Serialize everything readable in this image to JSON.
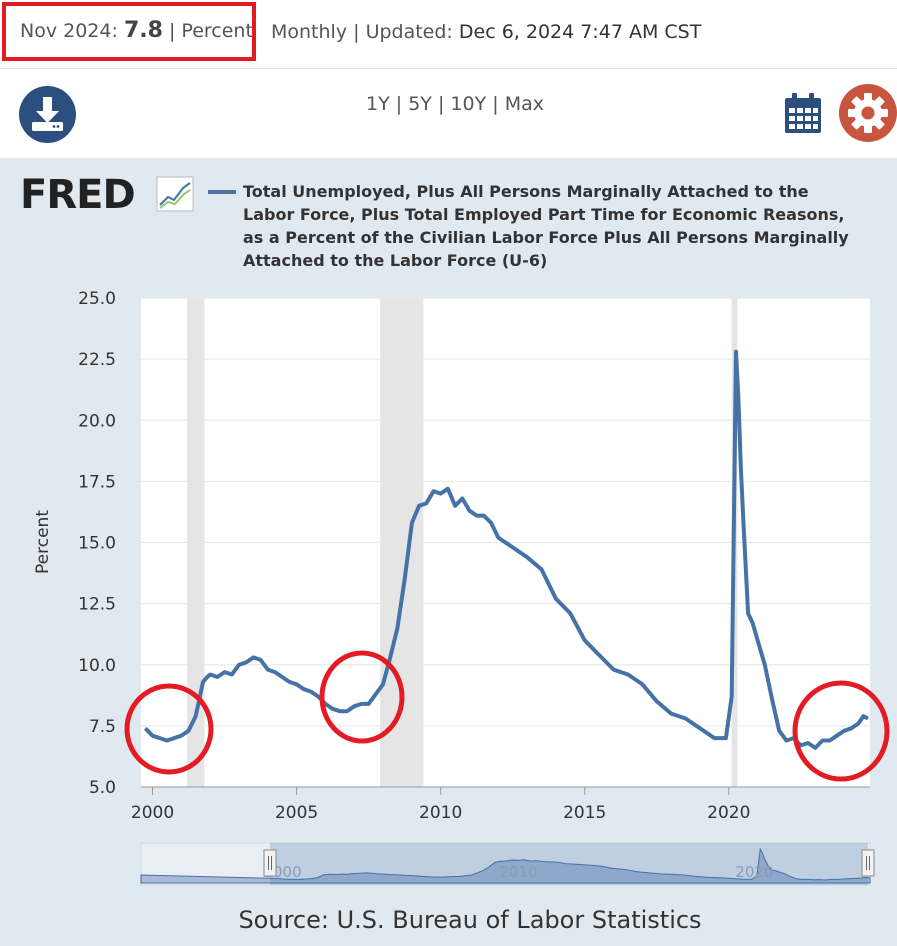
{
  "header": {
    "obs_date": "Nov 2024:",
    "obs_value": "7.8",
    "obs_units": "| Percent",
    "frequency": "Monthly",
    "updated_label": "| Updated:",
    "updated_value": "Dec 6, 2024 7:47 AM CST"
  },
  "toolbar": {
    "range_1y": "1Y",
    "range_5y": "5Y",
    "range_10y": "10Y",
    "range_max": "Max",
    "sep": "|",
    "download_icon": "download-icon",
    "calendar_icon": "calendar-icon",
    "settings_icon": "gear-icon"
  },
  "logo": {
    "text": "FRED",
    "icon": "line-chart-icon"
  },
  "colors": {
    "series": "#4572a7",
    "recession": "#e5e5e5",
    "panel": "#e1e9f0",
    "annotation": "#e31b23",
    "accent": "#c8553d",
    "brand": "#2d4f7f"
  },
  "chart_data": {
    "type": "line",
    "title": "Total Unemployed, Plus All Persons Marginally Attached to the Labor Force, Plus Total Employed Part Time for Economic Reasons, as a Percent of the Civilian Labor Force Plus All Persons Marginally Attached to the Labor Force (U-6)",
    "ylabel": "Percent",
    "xlabel": "",
    "ylim": [
      5.0,
      25.0
    ],
    "xlim": [
      1999.6,
      2024.9
    ],
    "yticks": [
      "5.0",
      "7.5",
      "10.0",
      "12.5",
      "15.0",
      "17.5",
      "20.0",
      "22.5",
      "25.0"
    ],
    "xticks": [
      "2000",
      "2005",
      "2010",
      "2015",
      "2020"
    ],
    "grid": true,
    "legend": "top",
    "recessions": [
      [
        2001.2,
        2001.8
      ],
      [
        2007.9,
        2009.4
      ],
      [
        2020.1,
        2020.3
      ]
    ],
    "series": [
      {
        "x": [
          1999.75,
          2000.0,
          2000.25,
          2000.5,
          2000.75,
          2001.0,
          2001.25,
          2001.5,
          2001.75,
          2001.9,
          2002.0,
          2002.25,
          2002.5,
          2002.75,
          2003.0,
          2003.25,
          2003.5,
          2003.75,
          2004.0,
          2004.25,
          2004.5,
          2004.75,
          2005.0,
          2005.25,
          2005.5,
          2005.75,
          2006.0,
          2006.25,
          2006.5,
          2006.75,
          2007.0,
          2007.25,
          2007.5,
          2007.75,
          2008.0,
          2008.25,
          2008.5,
          2008.75,
          2009.0,
          2009.25,
          2009.5,
          2009.75,
          2010.0,
          2010.25,
          2010.5,
          2010.75,
          2011.0,
          2011.25,
          2011.5,
          2011.75,
          2012.0,
          2012.5,
          2013.0,
          2013.5,
          2014.0,
          2014.5,
          2015.0,
          2015.5,
          2016.0,
          2016.5,
          2017.0,
          2017.5,
          2018.0,
          2018.5,
          2019.0,
          2019.5,
          2019.9,
          2020.1,
          2020.25,
          2020.33,
          2020.42,
          2020.5,
          2020.67,
          2020.83,
          2021.0,
          2021.25,
          2021.5,
          2021.75,
          2022.0,
          2022.25,
          2022.5,
          2022.75,
          2023.0,
          2023.25,
          2023.5,
          2023.75,
          2024.0,
          2024.25,
          2024.5,
          2024.67,
          2024.83
        ],
        "values": [
          7.4,
          7.1,
          7.0,
          6.9,
          7.0,
          7.1,
          7.3,
          7.9,
          9.3,
          9.5,
          9.6,
          9.5,
          9.7,
          9.6,
          10.0,
          10.1,
          10.3,
          10.2,
          9.8,
          9.7,
          9.5,
          9.3,
          9.2,
          9.0,
          8.9,
          8.7,
          8.4,
          8.2,
          8.1,
          8.1,
          8.3,
          8.4,
          8.4,
          8.8,
          9.2,
          10.3,
          11.5,
          13.5,
          15.8,
          16.5,
          16.6,
          17.1,
          17.0,
          17.2,
          16.5,
          16.8,
          16.3,
          16.1,
          16.1,
          15.8,
          15.2,
          14.8,
          14.4,
          13.9,
          12.7,
          12.1,
          11.0,
          10.4,
          9.8,
          9.6,
          9.2,
          8.5,
          8.0,
          7.8,
          7.4,
          7.0,
          7.0,
          8.7,
          22.8,
          21.0,
          18.0,
          16.0,
          12.1,
          11.7,
          11.0,
          10.0,
          8.6,
          7.3,
          6.9,
          7.0,
          6.7,
          6.8,
          6.6,
          6.9,
          6.9,
          7.1,
          7.3,
          7.4,
          7.6,
          7.9,
          7.8
        ]
      }
    ]
  },
  "navigator": {
    "labels": [
      "2000",
      "2010",
      "2020"
    ]
  },
  "annotations": {
    "circles": 3
  },
  "source": "Source: U.S. Bureau of Labor Statistics"
}
